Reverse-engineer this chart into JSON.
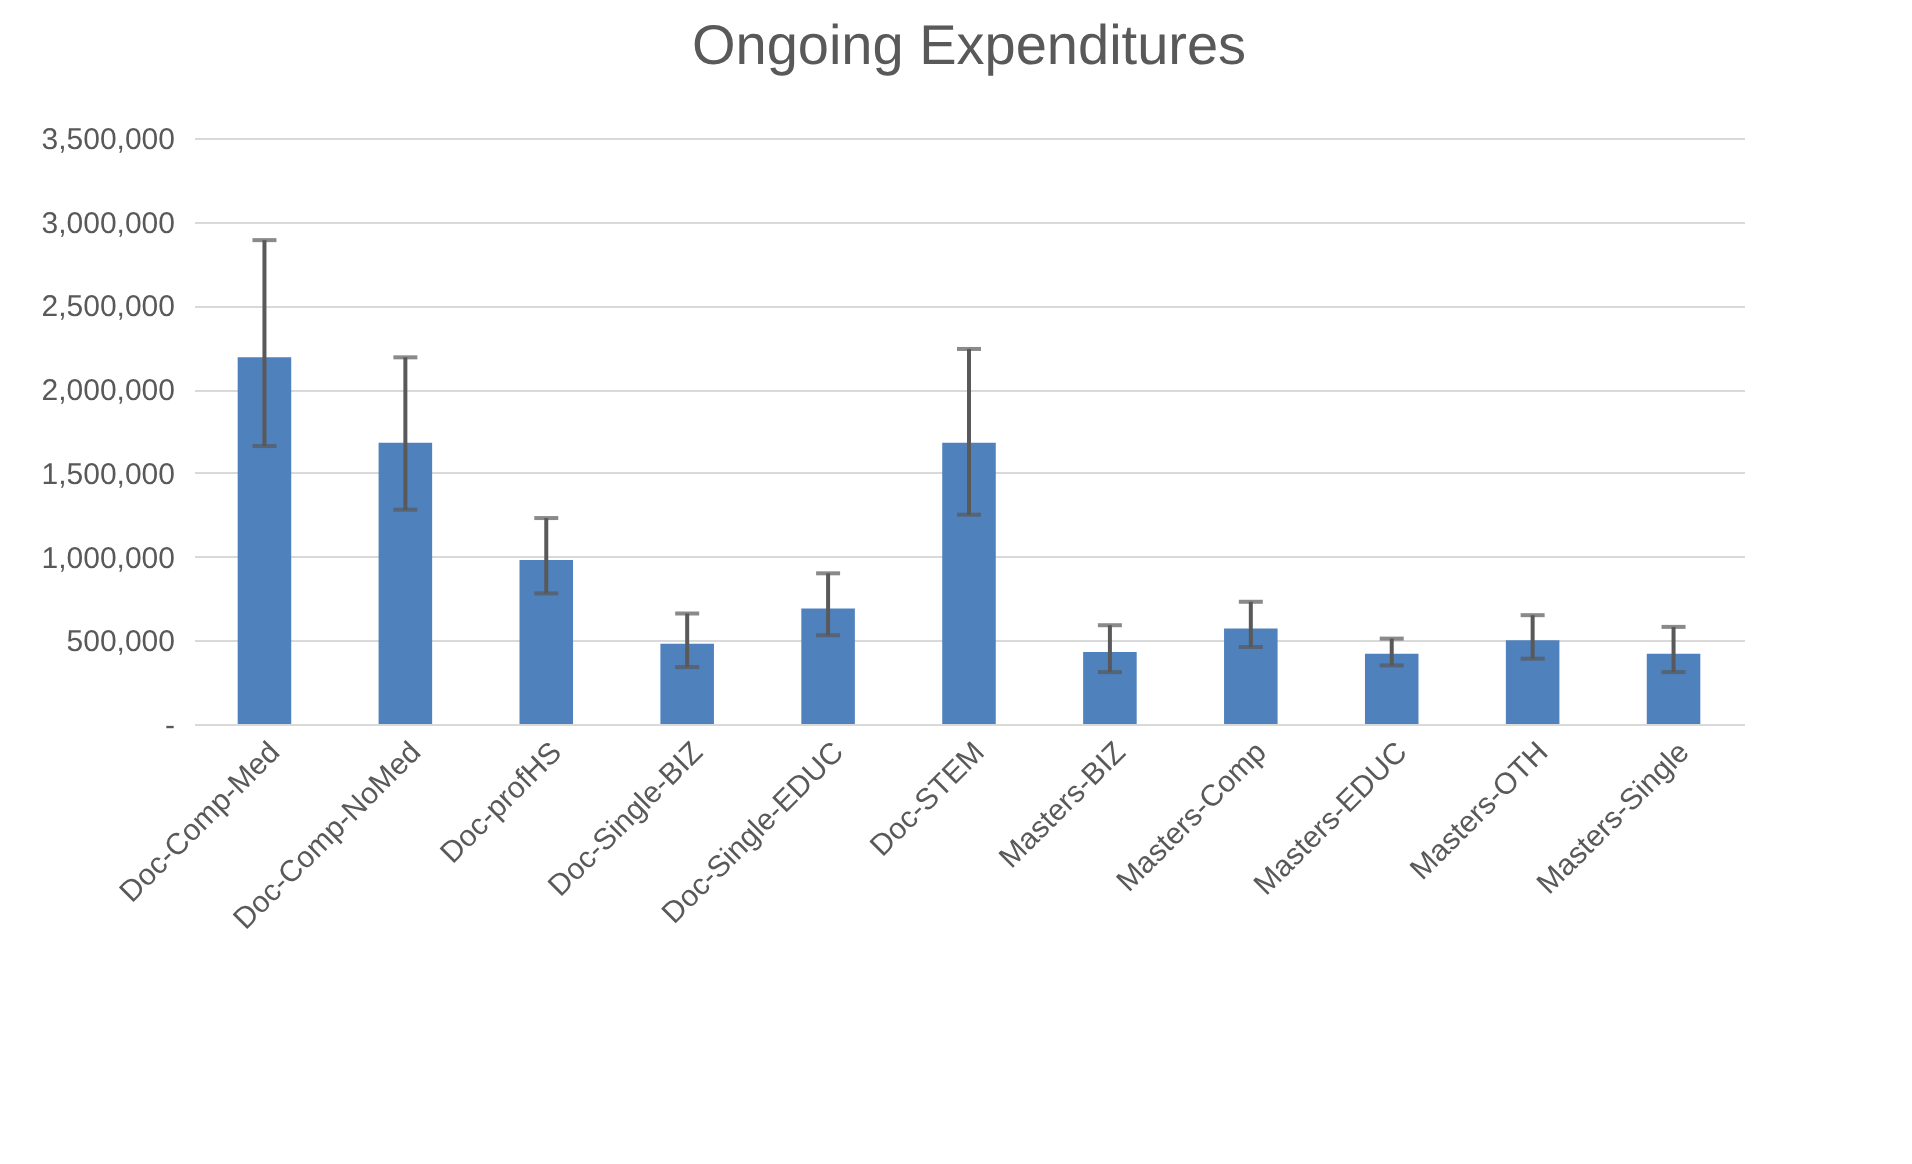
{
  "chart_data": {
    "type": "bar",
    "title": "Ongoing Expenditures",
    "categories": [
      "Doc-Comp-Med",
      "Doc-Comp-NoMed",
      "Doc-profHS",
      "Doc-Single-BIZ",
      "Doc-Single-EDUC",
      "Doc-STEM",
      "Masters-BIZ",
      "Masters-Comp",
      "Masters-EDUC",
      "Masters-OTH",
      "Masters-Single"
    ],
    "values": [
      2190000,
      1680000,
      980000,
      480000,
      690000,
      1680000,
      430000,
      570000,
      420000,
      500000,
      420000
    ],
    "errors": [
      [
        1660000,
        2890000
      ],
      [
        1280000,
        2190000
      ],
      [
        780000,
        1230000
      ],
      [
        340000,
        660000
      ],
      [
        530000,
        900000
      ],
      [
        1250000,
        2240000
      ],
      [
        310000,
        590000
      ],
      [
        460000,
        730000
      ],
      [
        350000,
        510000
      ],
      [
        390000,
        650000
      ],
      [
        310000,
        580000
      ]
    ],
    "color": "#4f81bd",
    "ylim": [
      0,
      3500000
    ],
    "yticks": [
      {
        "value": 0,
        "label": "-"
      },
      {
        "value": 500000,
        "label": "500,000"
      },
      {
        "value": 1000000,
        "label": "1,000,000"
      },
      {
        "value": 1500000,
        "label": "1,500,000"
      },
      {
        "value": 2000000,
        "label": "2,000,000"
      },
      {
        "value": 2500000,
        "label": "2,500,000"
      },
      {
        "value": 3000000,
        "label": "3,000,000"
      },
      {
        "value": 3500000,
        "label": "3,500,000"
      }
    ],
    "grid": "y"
  }
}
